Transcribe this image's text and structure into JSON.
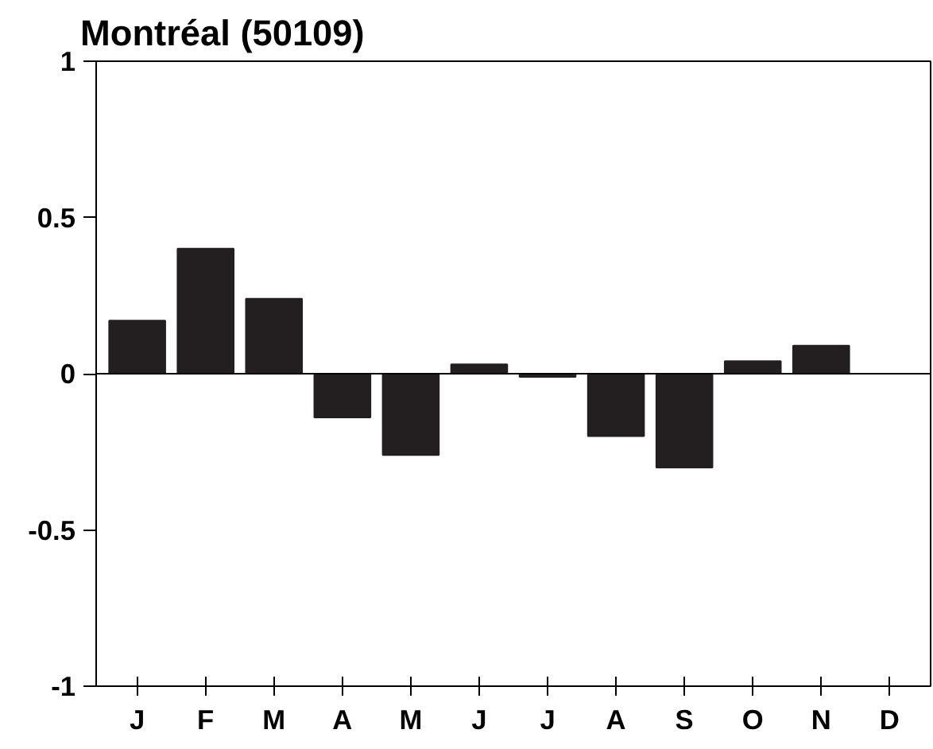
{
  "chart_data": {
    "type": "bar",
    "title": "Montréal (50109)",
    "categories": [
      "J",
      "F",
      "M",
      "A",
      "M",
      "J",
      "J",
      "A",
      "S",
      "O",
      "N",
      "D"
    ],
    "values": [
      0.17,
      0.4,
      0.24,
      -0.14,
      -0.26,
      0.03,
      -0.01,
      -0.2,
      -0.3,
      0.04,
      0.09,
      null
    ],
    "color": "#231f20",
    "ylim": [
      -1,
      1
    ],
    "yticks": [
      -1,
      -0.5,
      0,
      0.5,
      1
    ],
    "ref_lines": [
      {
        "axis": "y",
        "value": 0,
        "color": "#000000"
      }
    ]
  }
}
